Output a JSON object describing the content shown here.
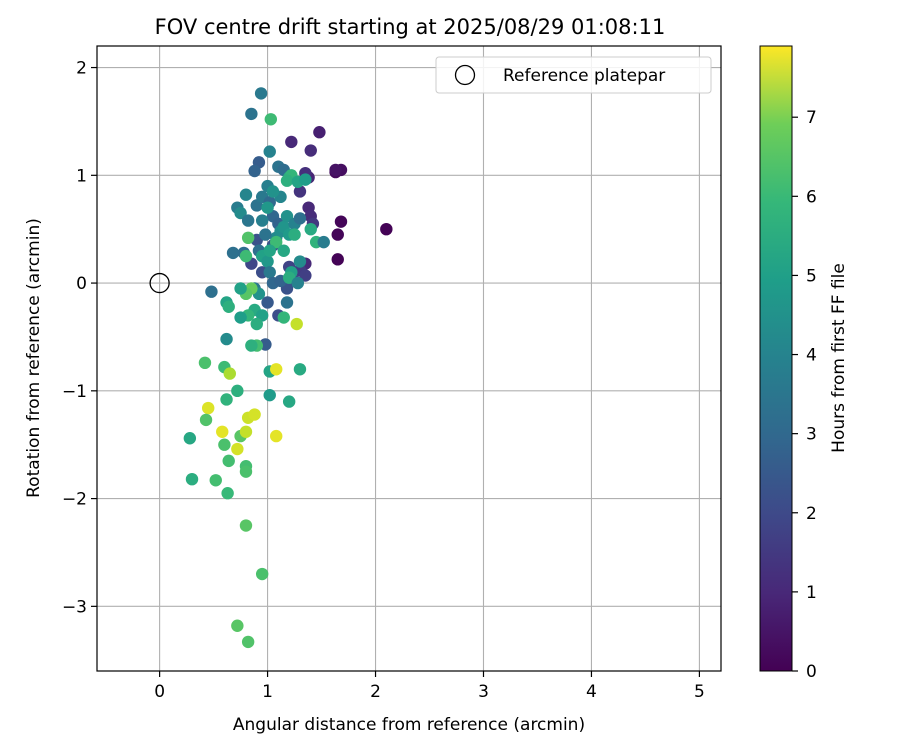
{
  "chart_data": {
    "type": "scatter",
    "title": "FOV centre drift starting at 2025/08/29 01:08:11",
    "xlabel": "Angular distance from reference (arcmin)",
    "ylabel": "Rotation from reference (arcmin)",
    "xlim": [
      -0.58,
      5.2
    ],
    "ylim": [
      -3.6,
      2.2
    ],
    "xticks": [
      0,
      1,
      2,
      3,
      4,
      5
    ],
    "yticks": [
      -3,
      -2,
      -1,
      0,
      1,
      2
    ],
    "grid": true,
    "legend": {
      "placement": "top-right",
      "entries": [
        "Reference platepar"
      ]
    },
    "reference_point": {
      "x": 0,
      "y": 0
    },
    "colorbar": {
      "label": "Hours from first FF file",
      "range": [
        0,
        7.9
      ],
      "ticks": [
        0,
        1,
        2,
        3,
        4,
        5,
        6,
        7
      ],
      "colormap": "viridis"
    },
    "points": [
      {
        "x": 2.1,
        "y": 0.5,
        "c": 0.05
      },
      {
        "x": 1.65,
        "y": 0.22,
        "c": 0.05
      },
      {
        "x": 1.65,
        "y": 0.45,
        "c": 0.1
      },
      {
        "x": 1.68,
        "y": 0.57,
        "c": 0.1
      },
      {
        "x": 1.63,
        "y": 1.03,
        "c": 0.2
      },
      {
        "x": 1.68,
        "y": 1.05,
        "c": 0.3
      },
      {
        "x": 1.63,
        "y": 1.05,
        "c": 0.4
      },
      {
        "x": 1.48,
        "y": 1.4,
        "c": 0.7
      },
      {
        "x": 1.4,
        "y": 1.23,
        "c": 1.0
      },
      {
        "x": 1.22,
        "y": 1.31,
        "c": 0.9
      },
      {
        "x": 1.38,
        "y": 0.98,
        "c": 0.8
      },
      {
        "x": 1.35,
        "y": 1.02,
        "c": 1.1
      },
      {
        "x": 1.3,
        "y": 0.85,
        "c": 1.2
      },
      {
        "x": 1.38,
        "y": 0.7,
        "c": 0.9
      },
      {
        "x": 1.4,
        "y": 0.62,
        "c": 1.0
      },
      {
        "x": 1.42,
        "y": 0.55,
        "c": 1.3
      },
      {
        "x": 1.35,
        "y": 0.18,
        "c": 0.9
      },
      {
        "x": 1.3,
        "y": 0.12,
        "c": 1.4
      },
      {
        "x": 1.35,
        "y": 0.07,
        "c": 1.5
      },
      {
        "x": 1.2,
        "y": 0.15,
        "c": 1.6
      },
      {
        "x": 1.25,
        "y": 0.02,
        "c": 1.8
      },
      {
        "x": 1.18,
        "y": -0.05,
        "c": 2.0
      },
      {
        "x": 1.1,
        "y": -0.3,
        "c": 1.9
      },
      {
        "x": 1.05,
        "y": 0.35,
        "c": 2.1
      },
      {
        "x": 1.0,
        "y": -0.18,
        "c": 2.2
      },
      {
        "x": 0.98,
        "y": -0.57,
        "c": 2.3
      },
      {
        "x": 0.95,
        "y": 0.1,
        "c": 1.9
      },
      {
        "x": 0.9,
        "y": 0.4,
        "c": 2.0
      },
      {
        "x": 0.85,
        "y": 0.18,
        "c": 1.7
      },
      {
        "x": 0.92,
        "y": 1.12,
        "c": 2.3
      },
      {
        "x": 0.88,
        "y": 1.04,
        "c": 2.5
      },
      {
        "x": 0.85,
        "y": 1.57,
        "c": 3.0
      },
      {
        "x": 0.94,
        "y": 1.76,
        "c": 3.2
      },
      {
        "x": 1.02,
        "y": 1.22,
        "c": 3.5
      },
      {
        "x": 1.03,
        "y": 1.52,
        "c": 5.4
      },
      {
        "x": 0.8,
        "y": 0.82,
        "c": 3.6
      },
      {
        "x": 0.72,
        "y": 0.7,
        "c": 3.3
      },
      {
        "x": 0.75,
        "y": 0.65,
        "c": 3.8
      },
      {
        "x": 0.82,
        "y": 0.58,
        "c": 3.1
      },
      {
        "x": 0.68,
        "y": 0.28,
        "c": 2.9
      },
      {
        "x": 0.78,
        "y": 0.28,
        "c": 2.8
      },
      {
        "x": 0.9,
        "y": 0.72,
        "c": 3.0
      },
      {
        "x": 0.95,
        "y": 0.8,
        "c": 3.2
      },
      {
        "x": 1.0,
        "y": 0.9,
        "c": 3.4
      },
      {
        "x": 1.02,
        "y": 0.75,
        "c": 2.7
      },
      {
        "x": 1.05,
        "y": 0.62,
        "c": 2.6
      },
      {
        "x": 1.1,
        "y": 0.55,
        "c": 2.5
      },
      {
        "x": 1.08,
        "y": 0.42,
        "c": 3.7
      },
      {
        "x": 1.12,
        "y": 0.48,
        "c": 3.9
      },
      {
        "x": 1.15,
        "y": 0.52,
        "c": 4.1
      },
      {
        "x": 1.18,
        "y": 0.62,
        "c": 4.0
      },
      {
        "x": 1.2,
        "y": 0.45,
        "c": 4.3
      },
      {
        "x": 1.25,
        "y": 0.55,
        "c": 3.5
      },
      {
        "x": 1.3,
        "y": 0.6,
        "c": 2.9
      },
      {
        "x": 1.1,
        "y": 1.08,
        "c": 3.0
      },
      {
        "x": 1.15,
        "y": 1.05,
        "c": 2.8
      },
      {
        "x": 1.2,
        "y": 0.98,
        "c": 4.8
      },
      {
        "x": 1.22,
        "y": 1.0,
        "c": 5.2
      },
      {
        "x": 1.18,
        "y": 0.95,
        "c": 5.0
      },
      {
        "x": 1.28,
        "y": 0.94,
        "c": 4.6
      },
      {
        "x": 1.35,
        "y": 0.96,
        "c": 4.4
      },
      {
        "x": 1.12,
        "y": 0.8,
        "c": 3.6
      },
      {
        "x": 1.05,
        "y": 0.85,
        "c": 4.0
      },
      {
        "x": 1.0,
        "y": 0.7,
        "c": 4.2
      },
      {
        "x": 0.95,
        "y": 0.58,
        "c": 3.4
      },
      {
        "x": 0.98,
        "y": 0.45,
        "c": 3.0
      },
      {
        "x": 0.92,
        "y": 0.3,
        "c": 2.9
      },
      {
        "x": 0.95,
        "y": 0.25,
        "c": 4.5
      },
      {
        "x": 1.0,
        "y": 0.2,
        "c": 4.2
      },
      {
        "x": 1.02,
        "y": 0.1,
        "c": 3.2
      },
      {
        "x": 1.05,
        "y": 0.0,
        "c": 2.6
      },
      {
        "x": 1.12,
        "y": 0.02,
        "c": 2.5
      },
      {
        "x": 1.08,
        "y": 0.38,
        "c": 5.4
      },
      {
        "x": 1.02,
        "y": 0.3,
        "c": 4.6
      },
      {
        "x": 1.15,
        "y": 0.3,
        "c": 4.7
      },
      {
        "x": 1.25,
        "y": 0.45,
        "c": 4.9
      },
      {
        "x": 1.4,
        "y": 0.5,
        "c": 4.8
      },
      {
        "x": 1.45,
        "y": 0.38,
        "c": 5.1
      },
      {
        "x": 1.52,
        "y": 0.38,
        "c": 3.3
      },
      {
        "x": 1.3,
        "y": 0.2,
        "c": 3.8
      },
      {
        "x": 1.22,
        "y": 0.1,
        "c": 4.5
      },
      {
        "x": 1.2,
        "y": 0.05,
        "c": 4.9
      },
      {
        "x": 1.28,
        "y": 0.0,
        "c": 3.5
      },
      {
        "x": 0.82,
        "y": 0.42,
        "c": 5.7
      },
      {
        "x": 0.8,
        "y": 0.25,
        "c": 5.4
      },
      {
        "x": 0.88,
        "y": -0.05,
        "c": 3.2
      },
      {
        "x": 0.92,
        "y": -0.1,
        "c": 4.0
      },
      {
        "x": 0.85,
        "y": -0.05,
        "c": 6.0
      },
      {
        "x": 0.8,
        "y": -0.1,
        "c": 5.8
      },
      {
        "x": 0.75,
        "y": -0.05,
        "c": 4.5
      },
      {
        "x": 0.88,
        "y": -0.25,
        "c": 4.8
      },
      {
        "x": 0.95,
        "y": -0.3,
        "c": 4.5
      },
      {
        "x": 0.9,
        "y": -0.38,
        "c": 4.9
      },
      {
        "x": 0.82,
        "y": -0.3,
        "c": 5.2
      },
      {
        "x": 0.75,
        "y": -0.32,
        "c": 4.4
      },
      {
        "x": 0.62,
        "y": -0.18,
        "c": 4.6
      },
      {
        "x": 0.64,
        "y": -0.22,
        "c": 5.0
      },
      {
        "x": 0.48,
        "y": -0.08,
        "c": 2.9
      },
      {
        "x": 0.62,
        "y": -0.52,
        "c": 3.8
      },
      {
        "x": 1.18,
        "y": -0.18,
        "c": 3.0
      },
      {
        "x": 1.15,
        "y": -0.32,
        "c": 5.2
      },
      {
        "x": 1.27,
        "y": -0.38,
        "c": 7.2
      },
      {
        "x": 1.3,
        "y": -0.8,
        "c": 4.8
      },
      {
        "x": 1.2,
        "y": -1.1,
        "c": 4.7
      },
      {
        "x": 1.02,
        "y": -0.82,
        "c": 4.6
      },
      {
        "x": 1.08,
        "y": -0.8,
        "c": 7.6
      },
      {
        "x": 1.02,
        "y": -1.04,
        "c": 4.3
      },
      {
        "x": 0.9,
        "y": -0.58,
        "c": 5.5
      },
      {
        "x": 0.85,
        "y": -0.58,
        "c": 5.0
      },
      {
        "x": 0.6,
        "y": -0.78,
        "c": 5.4
      },
      {
        "x": 0.65,
        "y": -0.84,
        "c": 6.9
      },
      {
        "x": 0.42,
        "y": -0.74,
        "c": 5.6
      },
      {
        "x": 0.62,
        "y": -1.08,
        "c": 5.1
      },
      {
        "x": 0.45,
        "y": -1.16,
        "c": 7.5
      },
      {
        "x": 0.43,
        "y": -1.27,
        "c": 5.7
      },
      {
        "x": 0.28,
        "y": -1.44,
        "c": 4.7
      },
      {
        "x": 0.58,
        "y": -1.38,
        "c": 7.6
      },
      {
        "x": 0.6,
        "y": -1.5,
        "c": 5.6
      },
      {
        "x": 0.75,
        "y": -1.42,
        "c": 5.8
      },
      {
        "x": 0.72,
        "y": -1.54,
        "c": 7.4
      },
      {
        "x": 0.8,
        "y": -1.38,
        "c": 7.2
      },
      {
        "x": 0.82,
        "y": -1.25,
        "c": 7.3
      },
      {
        "x": 0.88,
        "y": -1.22,
        "c": 7.4
      },
      {
        "x": 1.08,
        "y": -1.42,
        "c": 7.6
      },
      {
        "x": 0.72,
        "y": -1.0,
        "c": 5.0
      },
      {
        "x": 0.64,
        "y": -1.65,
        "c": 5.5
      },
      {
        "x": 0.8,
        "y": -1.7,
        "c": 5.5
      },
      {
        "x": 0.8,
        "y": -1.75,
        "c": 5.6
      },
      {
        "x": 0.3,
        "y": -1.82,
        "c": 4.9
      },
      {
        "x": 0.52,
        "y": -1.83,
        "c": 5.5
      },
      {
        "x": 0.63,
        "y": -1.95,
        "c": 5.3
      },
      {
        "x": 0.8,
        "y": -2.25,
        "c": 5.8
      },
      {
        "x": 0.95,
        "y": -2.7,
        "c": 5.6
      },
      {
        "x": 0.72,
        "y": -3.18,
        "c": 5.8
      },
      {
        "x": 0.82,
        "y": -3.33,
        "c": 5.7
      }
    ]
  }
}
